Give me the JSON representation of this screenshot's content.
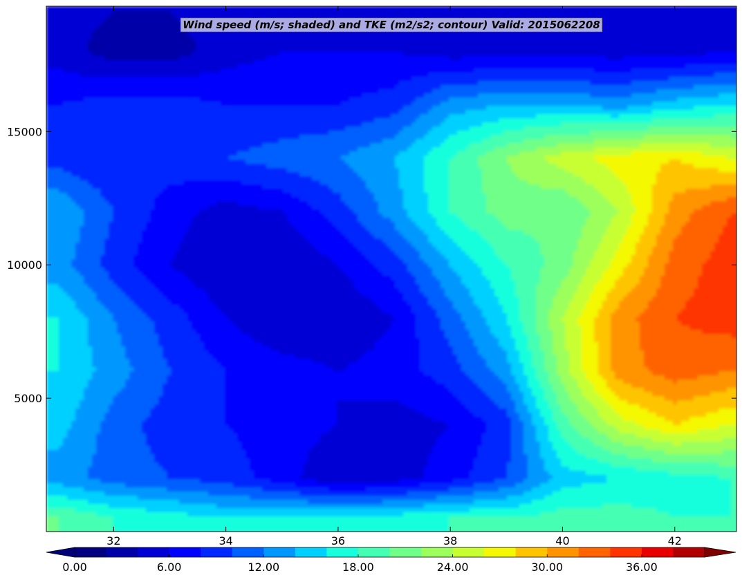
{
  "chart_data": {
    "type": "heatmap",
    "title": "Wind speed (m/s; shaded) and TKE (m2/s2; contour) Valid: 2015062208",
    "xlabel": "",
    "ylabel": "",
    "xlim": [
      30.8,
      43.1
    ],
    "ylim": [
      0,
      19700
    ],
    "x_ticks": [
      32,
      34,
      36,
      38,
      40,
      42
    ],
    "x_tick_labels": [
      "32",
      "34",
      "36",
      "38",
      "40",
      "42"
    ],
    "y_ticks": [
      5000,
      10000,
      15000
    ],
    "y_tick_labels": [
      "5000",
      "10000",
      "15000"
    ],
    "colorbar": {
      "min": 0,
      "max": 40,
      "step": 2,
      "tick_values": [
        0,
        6,
        12,
        18,
        24,
        30,
        36
      ],
      "tick_labels": [
        "0.00",
        "6.00",
        "12.00",
        "18.00",
        "24.00",
        "30.00",
        "36.00"
      ],
      "extend": "both",
      "colors": [
        "#000080",
        "#0000a8",
        "#0000d4",
        "#0000ff",
        "#0028ff",
        "#0060ff",
        "#0098ff",
        "#00d0ff",
        "#18ffdd",
        "#44ffb3",
        "#70ff88",
        "#9cff5c",
        "#c8ff30",
        "#f4f802",
        "#ffc400",
        "#ff9400",
        "#ff6400",
        "#ff3400",
        "#e80000",
        "#b00000"
      ],
      "under_color": "#00007a",
      "over_color": "#800000"
    },
    "field": {
      "x": [
        31.0,
        32.0,
        33.0,
        34.0,
        35.0,
        36.0,
        37.0,
        38.0,
        39.0,
        40.0,
        41.0,
        42.0,
        43.0
      ],
      "y": [
        500,
        2000,
        4000,
        6000,
        8000,
        10000,
        12000,
        14000,
        16000,
        18000,
        19500
      ],
      "wind_speed": [
        [
          20,
          18,
          17,
          16,
          16,
          17,
          17,
          18,
          18,
          19,
          19,
          18,
          18
        ],
        [
          13,
          11,
          10,
          9,
          7,
          4,
          5,
          7,
          10,
          15,
          16,
          17,
          18
        ],
        [
          15,
          11,
          9,
          8,
          7,
          6,
          5,
          6,
          9,
          19,
          25,
          28,
          26
        ],
        [
          16,
          13,
          10,
          8,
          7,
          6,
          7,
          9,
          13,
          23,
          31,
          33,
          32
        ],
        [
          16,
          12,
          9,
          6,
          4,
          4,
          6,
          11,
          16,
          24,
          31,
          34,
          35
        ],
        [
          13,
          9,
          6,
          4,
          4,
          6,
          9,
          14,
          18,
          21,
          27,
          33,
          35
        ],
        [
          14,
          10,
          7,
          5,
          6,
          9,
          13,
          18,
          21,
          20,
          24,
          31,
          34
        ],
        [
          9,
          8,
          9,
          10,
          11,
          12,
          14,
          18,
          22,
          25,
          27,
          28,
          26
        ],
        [
          8,
          9,
          9,
          8,
          8,
          8,
          9,
          13,
          14,
          14,
          13,
          15,
          16
        ],
        [
          5,
          3,
          3,
          5,
          6,
          6,
          6,
          5,
          5,
          5,
          5,
          5,
          6
        ],
        [
          5,
          4,
          4,
          5,
          5,
          5,
          5,
          5,
          4,
          4,
          4,
          4,
          4
        ]
      ]
    }
  }
}
